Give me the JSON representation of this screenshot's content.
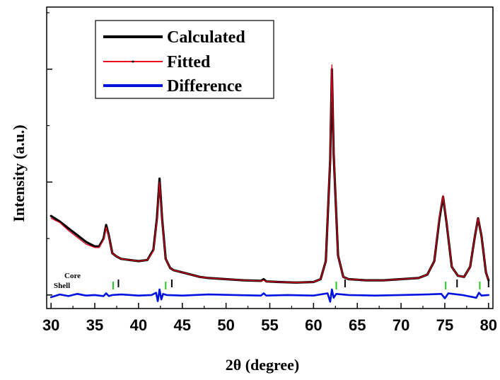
{
  "chart_data": {
    "type": "line",
    "title": "",
    "xlabel": "2θ (degree)",
    "ylabel": "Intensity (a.u.)",
    "xlim": [
      29.5,
      80.5
    ],
    "ylim": [
      -0.12,
      2.55
    ],
    "xticks": [
      "30",
      "35",
      "40",
      "45",
      "50",
      "55",
      "60",
      "65",
      "70",
      "75",
      "80"
    ],
    "y_tick_labels_shown": false,
    "grid": false,
    "legend_position": "top-left",
    "legend": [
      {
        "label": "Calculated",
        "color": "#000000"
      },
      {
        "label": "Fitted",
        "color": "#e8001c"
      },
      {
        "label": "Difference",
        "color": "#0012e0"
      }
    ],
    "series": [
      {
        "name": "Calculated",
        "color": "#000000",
        "x": [
          30,
          31,
          32,
          33,
          34,
          35,
          35.5,
          36,
          36.3,
          36.6,
          37,
          37.5,
          38,
          39,
          40,
          41,
          41.7,
          42.1,
          42.4,
          42.7,
          43.1,
          43.6,
          44,
          45,
          46,
          47,
          48,
          50,
          52,
          54,
          54.3,
          54.6,
          56,
          58,
          60,
          60.8,
          61.4,
          61.9,
          62.1,
          62.3,
          62.8,
          63.4,
          64,
          66,
          68,
          70,
          72,
          73,
          73.8,
          74.4,
          74.8,
          75.2,
          75.8,
          76.5,
          77.2,
          77.9,
          78.4,
          78.8,
          79.2,
          79.7,
          80
        ],
        "values": [
          0.7,
          0.65,
          0.59,
          0.53,
          0.47,
          0.43,
          0.43,
          0.5,
          0.62,
          0.53,
          0.37,
          0.34,
          0.32,
          0.31,
          0.3,
          0.31,
          0.4,
          0.68,
          1.03,
          0.67,
          0.32,
          0.24,
          0.22,
          0.2,
          0.18,
          0.16,
          0.15,
          0.14,
          0.13,
          0.125,
          0.14,
          0.12,
          0.115,
          0.11,
          0.115,
          0.14,
          0.3,
          1.2,
          2.0,
          1.25,
          0.35,
          0.16,
          0.14,
          0.13,
          0.13,
          0.14,
          0.15,
          0.18,
          0.3,
          0.68,
          0.87,
          0.64,
          0.25,
          0.17,
          0.16,
          0.25,
          0.5,
          0.68,
          0.52,
          0.2,
          0.13
        ]
      },
      {
        "name": "Fitted",
        "color": "#e8001c",
        "x": [
          30,
          31,
          32,
          33,
          34,
          35,
          35.5,
          36,
          36.3,
          36.6,
          37,
          37.5,
          38,
          39,
          40,
          41,
          41.7,
          42.1,
          42.4,
          42.7,
          43.1,
          43.6,
          44,
          45,
          46,
          47,
          48,
          50,
          52,
          54,
          54.3,
          54.6,
          56,
          58,
          60,
          60.8,
          61.4,
          61.9,
          62.1,
          62.3,
          62.8,
          63.4,
          64,
          66,
          68,
          70,
          72,
          73,
          73.8,
          74.4,
          74.8,
          75.2,
          75.8,
          76.5,
          77.2,
          77.9,
          78.4,
          78.8,
          79.2,
          79.7,
          80
        ],
        "values": [
          0.68,
          0.64,
          0.57,
          0.51,
          0.45,
          0.42,
          0.42,
          0.49,
          0.6,
          0.52,
          0.37,
          0.34,
          0.32,
          0.31,
          0.3,
          0.31,
          0.39,
          0.66,
          1.0,
          0.66,
          0.32,
          0.24,
          0.22,
          0.2,
          0.18,
          0.16,
          0.15,
          0.14,
          0.13,
          0.125,
          0.13,
          0.12,
          0.115,
          0.11,
          0.115,
          0.14,
          0.3,
          1.22,
          2.04,
          1.27,
          0.35,
          0.16,
          0.14,
          0.13,
          0.13,
          0.14,
          0.15,
          0.18,
          0.3,
          0.7,
          0.88,
          0.65,
          0.25,
          0.17,
          0.16,
          0.25,
          0.5,
          0.68,
          0.52,
          0.2,
          0.13
        ]
      },
      {
        "name": "Difference",
        "color": "#0012e0",
        "x": [
          30,
          31,
          32,
          33,
          34,
          35,
          36,
          36.3,
          36.6,
          37,
          38,
          40,
          41.5,
          42,
          42.2,
          42.4,
          42.6,
          42.8,
          43.2,
          45,
          48,
          51,
          54,
          54.3,
          54.6,
          57,
          60,
          61.6,
          61.9,
          62.1,
          62.3,
          62.6,
          64,
          67,
          70,
          73,
          74.6,
          75,
          75.4,
          77,
          78.6,
          78.9,
          79.2,
          80
        ],
        "values": [
          -0.02,
          0.005,
          -0.01,
          0.01,
          -0.005,
          0.0,
          -0.01,
          0.015,
          -0.01,
          0.0,
          0.005,
          -0.005,
          0.0,
          0.02,
          -0.055,
          0.05,
          -0.04,
          0.01,
          0.0,
          -0.005,
          0.005,
          0.0,
          -0.005,
          0.015,
          -0.005,
          0.0,
          -0.005,
          0.015,
          -0.06,
          0.05,
          -0.025,
          0.01,
          0.0,
          -0.005,
          0.0,
          0.005,
          0.01,
          -0.03,
          0.015,
          0.0,
          -0.025,
          0.02,
          -0.005,
          0.0
        ]
      }
    ],
    "reflection_markers": [
      {
        "label": "Core",
        "color": "#000000",
        "x": [
          37.7,
          43.8,
          63.6,
          76.4,
          80.0
        ]
      },
      {
        "label": "Shell",
        "color": "#22cc22",
        "x": [
          37.1,
          43.1,
          62.6,
          75.1,
          79.0
        ]
      }
    ]
  }
}
